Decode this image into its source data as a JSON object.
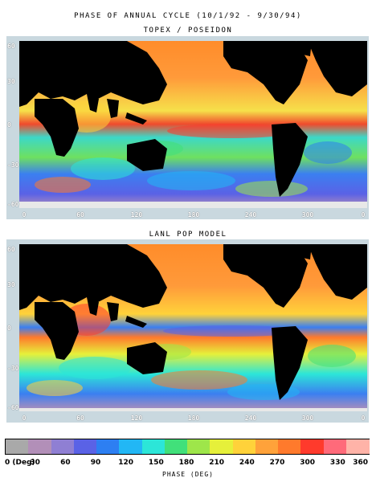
{
  "title": "PHASE OF ANNUAL CYCLE (10/1/92 - 9/30/94)",
  "panels": [
    {
      "title": "TOPEX / POSEIDON"
    },
    {
      "title": "LANL POP MODEL"
    }
  ],
  "lat_ticks": [
    "60",
    "30",
    "0",
    "-30",
    "-60"
  ],
  "lon_ticks": [
    "0",
    "60",
    "120",
    "180",
    "240",
    "300",
    "0"
  ],
  "colorbar": {
    "labels": [
      "0 (Deg)",
      "30",
      "60",
      "90",
      "120",
      "150",
      "180",
      "210",
      "240",
      "270",
      "300",
      "330",
      "360"
    ],
    "title": "PHASE (DEG)",
    "colors": [
      "#a9a9a9",
      "#b28fb8",
      "#8f7fd3",
      "#5a62e6",
      "#2d7ff2",
      "#22b7f5",
      "#2ce6d8",
      "#41e07a",
      "#9ee64a",
      "#e6f03a",
      "#ffd23a",
      "#ffa23a",
      "#ff7a2c",
      "#ff3a2c",
      "#ff6a7a",
      "#ffb3a8"
    ]
  },
  "map_palette": {
    "land": "#000000",
    "ice": "#ffffff",
    "north_pacific": "#ff8c2a",
    "equatorial": "#f04a2c",
    "tropical_band": "#3cd8c8",
    "southern_ocean": "#3b7ff0",
    "subtropics": "#e8e83a",
    "frame": "#c9d8df"
  }
}
